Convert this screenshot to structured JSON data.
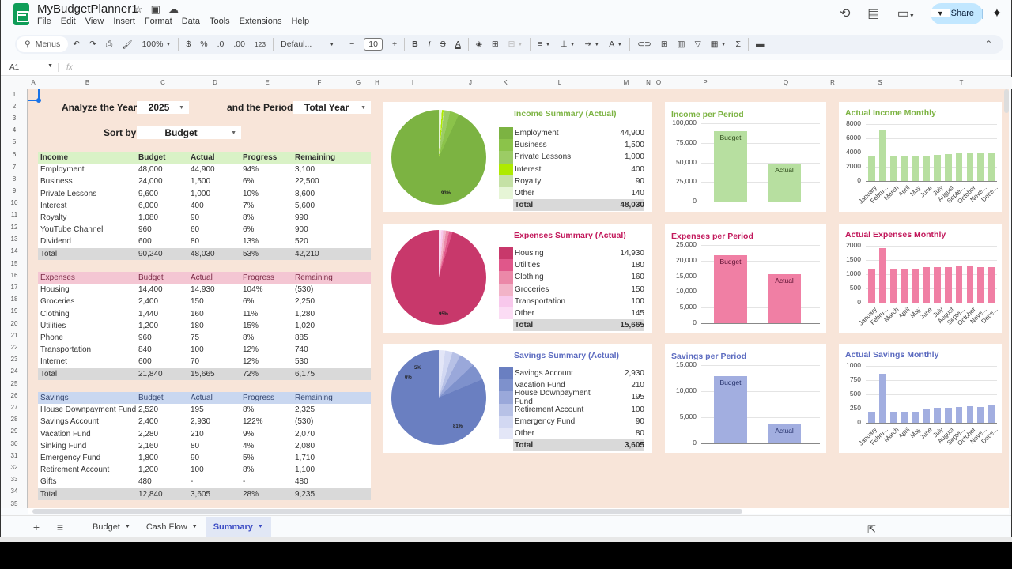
{
  "app": {
    "title": "MyBudgetPlanner1",
    "menu": [
      "File",
      "Edit",
      "View",
      "Insert",
      "Format",
      "Data",
      "Tools",
      "Extensions",
      "Help"
    ],
    "share_label": "Share"
  },
  "toolbar": {
    "menus_label": "Menus",
    "zoom": "100%",
    "currency": "$",
    "percent": "%",
    "dec_decrease": ".0",
    "dec_increase": ".00",
    "number_format": "123",
    "font": "Defaul...",
    "font_size": "10",
    "bold": "B",
    "italic": "I",
    "strike": "S",
    "text_color": "A"
  },
  "formula_bar": {
    "cell_ref": "A1",
    "fx": "fx",
    "value": ""
  },
  "columns": [
    "A",
    "B",
    "C",
    "D",
    "E",
    "F",
    "G",
    "H",
    "I",
    "J",
    "K",
    "L",
    "M",
    "N",
    "O",
    "P",
    "Q",
    "R",
    "S",
    "T"
  ],
  "rows": [
    "1",
    "2",
    "3",
    "4",
    "5",
    "6",
    "7",
    "8",
    "9",
    "10",
    "11",
    "12",
    "13",
    "14",
    "15",
    "16",
    "17",
    "18",
    "19",
    "20",
    "21",
    "22",
    "23",
    "24",
    "25",
    "26",
    "27",
    "28",
    "29",
    "30",
    "31",
    "32",
    "33",
    "34",
    "35"
  ],
  "controls": {
    "year_label": "Analyze the Year",
    "year_value": "2025",
    "period_label": "and the Period",
    "period_value": "Total Year",
    "sort_label": "Sort by",
    "sort_value": "Budget"
  },
  "tables": {
    "income": {
      "headers": [
        "Income",
        "Budget",
        "Actual",
        "Progress",
        "Remaining"
      ],
      "header_color": "#d9f2c6",
      "rows": [
        [
          "Employment",
          "48,000",
          "44,900",
          "94%",
          "3,100"
        ],
        [
          "Business",
          "24,000",
          "1,500",
          "6%",
          "22,500"
        ],
        [
          "Private Lessons",
          "9,600",
          "1,000",
          "10%",
          "8,600"
        ],
        [
          "Interest",
          "6,000",
          "400",
          "7%",
          "5,600"
        ],
        [
          "Royalty",
          "1,080",
          "90",
          "8%",
          "990"
        ],
        [
          "YouTube Channel",
          "960",
          "60",
          "6%",
          "900"
        ],
        [
          "Dividend",
          "600",
          "80",
          "13%",
          "520"
        ]
      ],
      "total": [
        "Total",
        "90,240",
        "48,030",
        "53%",
        "42,210"
      ]
    },
    "expenses": {
      "headers": [
        "Expenses",
        "Budget",
        "Actual",
        "Progress",
        "Remaining"
      ],
      "header_color": "#f4c6d3",
      "rows": [
        [
          "Housing",
          "14,400",
          "14,930",
          "104%",
          "(530)"
        ],
        [
          "Groceries",
          "2,400",
          "150",
          "6%",
          "2,250"
        ],
        [
          "Clothing",
          "1,440",
          "160",
          "11%",
          "1,280"
        ],
        [
          "Utilities",
          "1,200",
          "180",
          "15%",
          "1,020"
        ],
        [
          "Phone",
          "960",
          "75",
          "8%",
          "885"
        ],
        [
          "Transportation",
          "840",
          "100",
          "12%",
          "740"
        ],
        [
          "Internet",
          "600",
          "70",
          "12%",
          "530"
        ]
      ],
      "total": [
        "Total",
        "21,840",
        "15,665",
        "72%",
        "6,175"
      ]
    },
    "savings": {
      "headers": [
        "Savings",
        "Budget",
        "Actual",
        "Progress",
        "Remaining"
      ],
      "header_color": "#c9d7f0",
      "rows": [
        [
          "House Downpayment Fund",
          "2,520",
          "195",
          "8%",
          "2,325"
        ],
        [
          "Savings Account",
          "2,400",
          "2,930",
          "122%",
          "(530)"
        ],
        [
          "Vacation Fund",
          "2,280",
          "210",
          "9%",
          "2,070"
        ],
        [
          "Sinking Fund",
          "2,160",
          "80",
          "4%",
          "2,080"
        ],
        [
          "Emergency Fund",
          "1,800",
          "90",
          "5%",
          "1,710"
        ],
        [
          "Retirement Account",
          "1,200",
          "100",
          "8%",
          "1,100"
        ],
        [
          "Gifts",
          "480",
          "-",
          "-",
          "480"
        ]
      ],
      "total": [
        "Total",
        "12,840",
        "3,605",
        "28%",
        "9,235"
      ]
    }
  },
  "summaries": {
    "income": {
      "title": "Income Summary (Actual)",
      "color": "#7cb342",
      "items": [
        {
          "name": "Employment",
          "value": "44,900",
          "color": "#7cb342"
        },
        {
          "name": "Business",
          "value": "1,500",
          "color": "#8bc34a"
        },
        {
          "name": "Private Lessons",
          "value": "1,000",
          "color": "#9ccc65"
        },
        {
          "name": "Interest",
          "value": "400",
          "color": "#aeea00"
        },
        {
          "name": "Royalty",
          "value": "90",
          "color": "#c5e1a5"
        },
        {
          "name": "Other",
          "value": "140",
          "color": "#e6f5d6"
        }
      ],
      "total_label": "Total",
      "total": "48,030",
      "pie_label": "93%"
    },
    "expenses": {
      "title": "Expenses Summary (Actual)",
      "color": "#c2185b",
      "items": [
        {
          "name": "Housing",
          "value": "14,930",
          "color": "#c8386b"
        },
        {
          "name": "Utilities",
          "value": "180",
          "color": "#e0578a"
        },
        {
          "name": "Clothing",
          "value": "160",
          "color": "#eb88a8"
        },
        {
          "name": "Groceries",
          "value": "150",
          "color": "#f2b3c8"
        },
        {
          "name": "Transportation",
          "value": "100",
          "color": "#f8c8ec"
        },
        {
          "name": "Other",
          "value": "145",
          "color": "#fbdcf4"
        }
      ],
      "total_label": "Total",
      "total": "15,665",
      "pie_label": "95%"
    },
    "savings": {
      "title": "Savings Summary (Actual)",
      "color": "#5c6bc0",
      "items": [
        {
          "name": "Savings Account",
          "value": "2,930",
          "color": "#6a7fc1"
        },
        {
          "name": "Vacation Fund",
          "value": "210",
          "color": "#7e91cc"
        },
        {
          "name": "House Downpayment Fund",
          "value": "195",
          "color": "#9aa8da"
        },
        {
          "name": "Retirement Account",
          "value": "100",
          "color": "#b7c1e6"
        },
        {
          "name": "Emergency Fund",
          "value": "90",
          "color": "#d2d8f2"
        },
        {
          "name": "Other",
          "value": "80",
          "color": "#e3e6f7"
        }
      ],
      "total_label": "Total",
      "total": "3,605",
      "pie_label": "81%",
      "pie_label_2": "6%",
      "pie_label_3": "5%"
    }
  },
  "chart_data": [
    {
      "type": "pie",
      "title": "Income Summary (Actual)",
      "categories": [
        "Employment",
        "Business",
        "Private Lessons",
        "Interest",
        "Royalty",
        "Other"
      ],
      "values": [
        44900,
        1500,
        1000,
        400,
        90,
        140
      ],
      "labels": [
        "93%"
      ]
    },
    {
      "type": "pie",
      "title": "Expenses Summary (Actual)",
      "categories": [
        "Housing",
        "Utilities",
        "Clothing",
        "Groceries",
        "Transportation",
        "Other"
      ],
      "values": [
        14930,
        180,
        160,
        150,
        100,
        145
      ],
      "labels": [
        "95%"
      ]
    },
    {
      "type": "pie",
      "title": "Savings Summary (Actual)",
      "categories": [
        "Savings Account",
        "Vacation Fund",
        "House Downpayment Fund",
        "Retirement Account",
        "Emergency Fund",
        "Other"
      ],
      "values": [
        2930,
        210,
        195,
        100,
        90,
        80
      ],
      "labels": [
        "81%",
        "6%",
        "5%"
      ]
    },
    {
      "type": "bar",
      "title": "Income per Period",
      "categories": [
        "Budget",
        "Actual"
      ],
      "values": [
        90240,
        48030
      ],
      "yticks": [
        "100,000",
        "75,000",
        "50,000",
        "25,000",
        "0"
      ],
      "ylim": [
        0,
        100000
      ],
      "color": "#b7dfa0"
    },
    {
      "type": "bar",
      "title": "Expenses per Period",
      "categories": [
        "Budget",
        "Actual"
      ],
      "values": [
        21840,
        15665
      ],
      "yticks": [
        "25,000",
        "20,000",
        "15,000",
        "10,000",
        "5,000",
        "0"
      ],
      "ylim": [
        0,
        25000
      ],
      "color": "#f07fa4"
    },
    {
      "type": "bar",
      "title": "Savings per Period",
      "categories": [
        "Budget",
        "Actual"
      ],
      "values": [
        12840,
        3605
      ],
      "yticks": [
        "15,000",
        "10,000",
        "5,000",
        "0"
      ],
      "ylim": [
        0,
        15000
      ],
      "color": "#a2aee0"
    },
    {
      "type": "bar",
      "title": "Actual Income Monthly",
      "categories": [
        "January",
        "Febru...",
        "March",
        "April",
        "May",
        "June",
        "July",
        "August",
        "Septe...",
        "October",
        "Nove...",
        "Dece..."
      ],
      "values": [
        3500,
        7100,
        3500,
        3500,
        3500,
        3600,
        3650,
        3800,
        3900,
        4000,
        3900,
        4000
      ],
      "yticks": [
        "8000",
        "6000",
        "4000",
        "2000",
        "0"
      ],
      "ylim": [
        0,
        8000
      ],
      "color": "#b7dfa0"
    },
    {
      "type": "bar",
      "title": "Actual Expenses Monthly",
      "categories": [
        "January",
        "Febru...",
        "March",
        "April",
        "May",
        "June",
        "July",
        "August",
        "Septe...",
        "October",
        "Nove...",
        "Dece..."
      ],
      "values": [
        1180,
        1930,
        1180,
        1180,
        1180,
        1240,
        1260,
        1260,
        1280,
        1280,
        1260,
        1260
      ],
      "yticks": [
        "2000",
        "1500",
        "1000",
        "500",
        "0"
      ],
      "ylim": [
        0,
        2000
      ],
      "color": "#f07fa4"
    },
    {
      "type": "bar",
      "title": "Actual Savings Monthly",
      "categories": [
        "January",
        "Febru...",
        "March",
        "April",
        "May",
        "June",
        "July",
        "August",
        "Septe...",
        "October",
        "Nove...",
        "Dece..."
      ],
      "values": [
        200,
        860,
        200,
        200,
        200,
        250,
        260,
        270,
        280,
        290,
        280,
        300
      ],
      "yticks": [
        "1000",
        "750",
        "500",
        "250",
        "0"
      ],
      "ylim": [
        0,
        1000
      ],
      "color": "#a2aee0"
    }
  ],
  "sheet_tabs": [
    {
      "label": "Budget",
      "active": false
    },
    {
      "label": "Cash Flow",
      "active": false
    },
    {
      "label": "Summary",
      "active": true
    }
  ]
}
